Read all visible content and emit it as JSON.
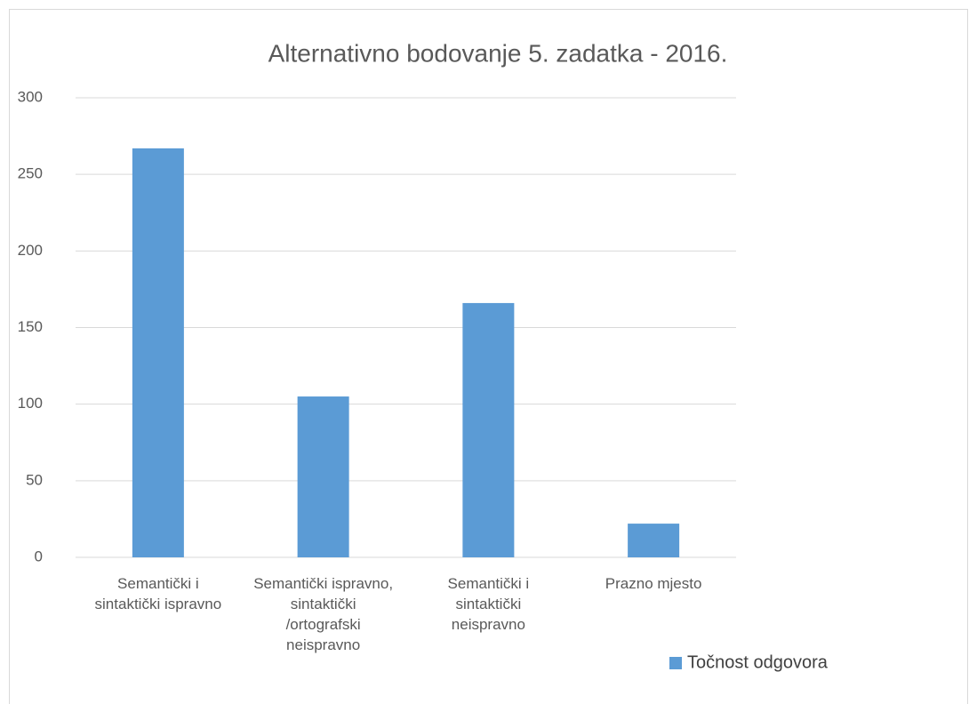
{
  "chart_data": {
    "type": "bar",
    "title": "Alternativno bodovanje 5. zadatka - 2016.",
    "categories": [
      "Semantički i sintaktički ispravno",
      "Semantički ispravno, sintaktički /ortografski neispravno",
      "Semantički i sintaktički neispravno",
      "Prazno mjesto"
    ],
    "series": [
      {
        "name": "Točnost odgovora",
        "color": "#5b9bd5",
        "values": [
          267,
          105,
          166,
          22
        ]
      }
    ],
    "ylim": [
      0,
      300
    ],
    "yticks": [
      0,
      50,
      100,
      150,
      200,
      250,
      300
    ],
    "grid": true,
    "legend": "bottom-right"
  }
}
